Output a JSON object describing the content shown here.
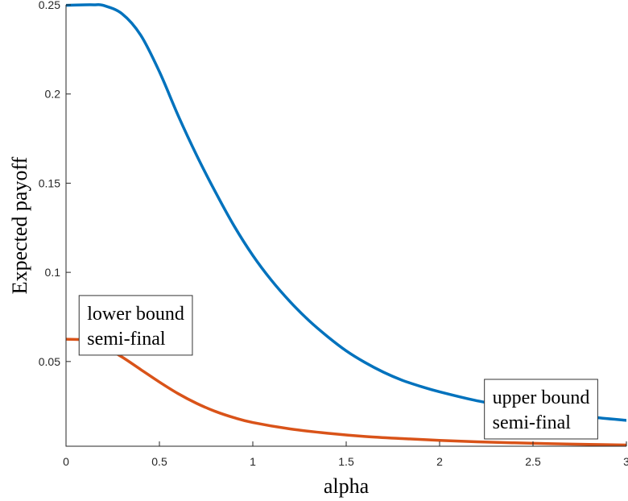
{
  "chart_data": {
    "type": "line",
    "title": "",
    "xlabel": "alpha",
    "ylabel": "Expected payoff",
    "xlim": [
      0,
      3
    ],
    "ylim": [
      0.0025,
      0.25
    ],
    "grid": false,
    "x_ticks": [
      {
        "value": 0,
        "label": "0"
      },
      {
        "value": 0.5,
        "label": "0.5"
      },
      {
        "value": 1,
        "label": "1"
      },
      {
        "value": 1.5,
        "label": "1.5"
      },
      {
        "value": 2,
        "label": "2"
      },
      {
        "value": 2.5,
        "label": "2.5"
      },
      {
        "value": 3,
        "label": "3"
      }
    ],
    "y_ticks": [
      {
        "value": 0.05,
        "label": "0.05"
      },
      {
        "value": 0.1,
        "label": "0.1"
      },
      {
        "value": 0.15,
        "label": "0.15"
      },
      {
        "value": 0.2,
        "label": "0.2"
      },
      {
        "value": 0.25,
        "label": "0.25"
      }
    ],
    "series": [
      {
        "color": "#0072BD",
        "x": [
          0,
          0.1,
          0.15,
          0.2,
          0.3,
          0.4,
          0.5,
          0.6,
          0.7,
          0.8,
          0.9,
          1.0,
          1.1,
          1.2,
          1.3,
          1.4,
          1.5,
          1.6,
          1.7,
          1.8,
          1.9,
          2.0,
          2.2,
          2.4,
          2.6,
          2.8,
          3.0
        ],
        "y": [
          0.2497,
          0.25,
          0.25,
          0.2497,
          0.245,
          0.233,
          0.2125,
          0.188,
          0.1655,
          0.145,
          0.126,
          0.1095,
          0.0955,
          0.0835,
          0.073,
          0.064,
          0.056,
          0.0495,
          0.044,
          0.0395,
          0.036,
          0.033,
          0.028,
          0.0245,
          0.0215,
          0.019,
          0.017
        ]
      },
      {
        "color": "#D95319",
        "x": [
          0,
          0.1,
          0.2,
          0.3,
          0.4,
          0.5,
          0.6,
          0.7,
          0.8,
          0.9,
          1.0,
          1.2,
          1.4,
          1.6,
          1.8,
          2.0,
          2.2,
          2.4,
          2.6,
          2.8,
          3.0
        ],
        "y": [
          0.0625,
          0.062,
          0.0585,
          0.0525,
          0.0455,
          0.0385,
          0.032,
          0.0265,
          0.022,
          0.0185,
          0.0158,
          0.0122,
          0.0098,
          0.008,
          0.0068,
          0.0058,
          0.005,
          0.0044,
          0.0039,
          0.0035,
          0.0032
        ]
      }
    ],
    "annotations": [
      {
        "id": "lower",
        "lines": [
          "lower bound",
          "semi-final"
        ],
        "x": 0.07,
        "y": 0.087
      },
      {
        "id": "upper",
        "lines": [
          "upper bound",
          "semi-final"
        ],
        "x": 2.24,
        "y": 0.04
      }
    ]
  }
}
